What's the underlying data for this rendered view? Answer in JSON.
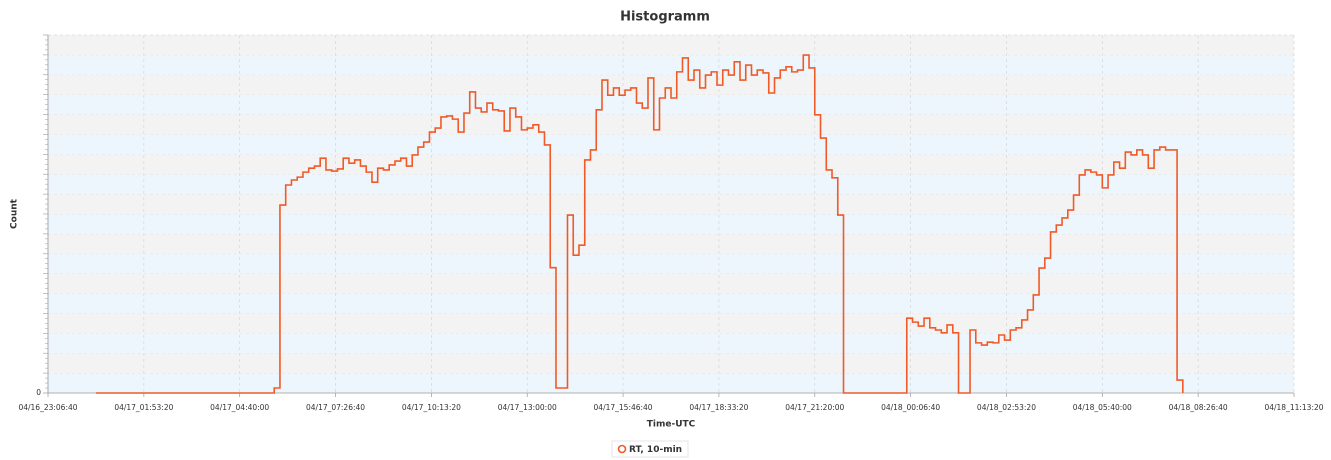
{
  "chart_data": {
    "type": "line",
    "step": true,
    "title": "Histogramm",
    "xlabel": "Time-UTC",
    "ylabel": "Count",
    "xlim": [
      "04/16_23:06:40",
      "04/18_11:13:20"
    ],
    "xticks": [
      "04/16_23:06:40",
      "04/17_01:53:20",
      "04/17_04:40:00",
      "04/17_07:26:40",
      "04/17_10:13:20",
      "04/17_13:00:00",
      "04/17_15:46:40",
      "04/17_18:33:20",
      "04/17_21:20:00",
      "04/18_00:06:40",
      "04/18_02:53:20",
      "04/18_05:40:00",
      "04/18_08:26:40",
      "04/18_11:13:20"
    ],
    "ylim": [
      0,
      100
    ],
    "yticks": [
      0
    ],
    "grid": true,
    "legend": "bottom",
    "series": [
      {
        "name": "RT, 10-min",
        "color": "#f05a28",
        "x": [
          "04/17_00:30:00",
          "04/17_05:40:00",
          "04/17_05:50:00",
          "04/17_06:00:00",
          "04/17_06:10:00",
          "04/17_06:20:00",
          "04/17_06:30:00",
          "04/17_06:40:00",
          "04/17_06:50:00",
          "04/17_07:00:00",
          "04/17_07:10:00",
          "04/17_07:20:00",
          "04/17_07:30:00",
          "04/17_07:40:00",
          "04/17_07:50:00",
          "04/17_08:00:00",
          "04/17_08:10:00",
          "04/17_08:20:00",
          "04/17_08:30:00",
          "04/17_08:40:00",
          "04/17_08:50:00",
          "04/17_09:00:00",
          "04/17_09:10:00",
          "04/17_09:20:00",
          "04/17_09:30:00",
          "04/17_09:40:00",
          "04/17_09:50:00",
          "04/17_10:00:00",
          "04/17_10:10:00",
          "04/17_10:20:00",
          "04/17_10:30:00",
          "04/17_10:40:00",
          "04/17_10:50:00",
          "04/17_11:00:00",
          "04/17_11:10:00",
          "04/17_11:20:00",
          "04/17_11:30:00",
          "04/17_11:40:00",
          "04/17_11:50:00",
          "04/17_12:00:00",
          "04/17_12:10:00",
          "04/17_12:20:00",
          "04/17_12:30:00",
          "04/17_12:40:00",
          "04/17_12:50:00",
          "04/17_13:00:00",
          "04/17_13:10:00",
          "04/17_13:20:00",
          "04/17_13:30:00",
          "04/17_13:40:00",
          "04/17_13:50:00",
          "04/17_14:00:00",
          "04/17_14:10:00",
          "04/17_14:20:00",
          "04/17_14:30:00",
          "04/17_14:40:00",
          "04/17_14:50:00",
          "04/17_15:00:00",
          "04/17_15:10:00",
          "04/17_15:20:00",
          "04/17_15:30:00",
          "04/17_15:40:00",
          "04/17_15:50:00",
          "04/17_16:00:00",
          "04/17_16:10:00",
          "04/17_16:20:00",
          "04/17_16:30:00",
          "04/17_16:40:00",
          "04/17_16:50:00",
          "04/17_17:00:00",
          "04/17_17:10:00",
          "04/17_17:20:00",
          "04/17_17:30:00",
          "04/17_17:40:00",
          "04/17_17:50:00",
          "04/17_18:00:00",
          "04/17_18:10:00",
          "04/17_18:20:00",
          "04/17_18:30:00",
          "04/17_18:40:00",
          "04/17_18:50:00",
          "04/17_19:00:00",
          "04/17_19:10:00",
          "04/17_19:20:00",
          "04/17_19:30:00",
          "04/17_19:40:00",
          "04/17_19:50:00",
          "04/17_20:00:00",
          "04/17_20:10:00",
          "04/17_20:20:00",
          "04/17_20:30:00",
          "04/17_20:40:00",
          "04/17_20:50:00",
          "04/17_21:00:00",
          "04/17_21:10:00",
          "04/17_21:20:00",
          "04/17_21:30:00",
          "04/17_21:40:00",
          "04/17_21:50:00",
          "04/17_22:00:00",
          "04/17_22:10:00",
          "04/18_00:00:00",
          "04/18_00:10:00",
          "04/18_00:20:00",
          "04/18_00:30:00",
          "04/18_00:40:00",
          "04/18_00:50:00",
          "04/18_01:00:00",
          "04/18_01:10:00",
          "04/18_01:20:00",
          "04/18_01:30:00",
          "04/18_01:50:00",
          "04/18_02:00:00",
          "04/18_02:10:00",
          "04/18_02:20:00",
          "04/18_02:30:00",
          "04/18_02:40:00",
          "04/18_02:50:00",
          "04/18_03:00:00",
          "04/18_03:10:00",
          "04/18_03:20:00",
          "04/18_03:30:00",
          "04/18_03:40:00",
          "04/18_03:50:00",
          "04/18_04:00:00",
          "04/18_04:10:00",
          "04/18_04:20:00",
          "04/18_04:30:00",
          "04/18_04:40:00",
          "04/18_04:50:00",
          "04/18_05:00:00",
          "04/18_05:10:00",
          "04/18_05:20:00",
          "04/18_05:30:00",
          "04/18_05:40:00",
          "04/18_05:50:00",
          "04/18_06:00:00",
          "04/18_06:10:00",
          "04/18_06:20:00",
          "04/18_06:30:00",
          "04/18_06:40:00",
          "04/18_06:50:00",
          "04/18_07:00:00",
          "04/18_07:10:00",
          "04/18_07:20:00",
          "04/18_07:30:00",
          "04/18_07:40:00",
          "04/18_07:50:00",
          "04/18_08:00:00"
        ],
        "values": [
          0,
          1.4,
          52.5,
          58.1,
          59.5,
          60.3,
          61.7,
          62.8,
          63.4,
          65.6,
          62.3,
          62.0,
          62.6,
          65.6,
          64.2,
          65.1,
          63.4,
          61.7,
          58.9,
          62.8,
          62.3,
          63.7,
          64.8,
          65.6,
          63.4,
          66.5,
          68.7,
          70.1,
          72.9,
          74.0,
          77.1,
          77.4,
          76.5,
          72.9,
          78.2,
          84.1,
          79.6,
          78.5,
          81.0,
          79.1,
          78.8,
          73.2,
          79.6,
          77.1,
          73.5,
          74.0,
          74.9,
          72.9,
          69.3,
          35.0,
          1.4,
          1.4,
          49.7,
          38.5,
          41.3,
          65.1,
          67.9,
          79.1,
          87.4,
          83.2,
          85.2,
          83.2,
          84.6,
          85.2,
          81.0,
          79.6,
          88.0,
          73.5,
          82.4,
          85.2,
          82.4,
          89.7,
          93.6,
          87.4,
          90.2,
          85.2,
          88.8,
          89.7,
          86.0,
          90.2,
          88.8,
          92.5,
          87.4,
          91.6,
          88.8,
          90.2,
          89.4,
          83.8,
          88.0,
          90.2,
          91.1,
          89.7,
          90.2,
          94.4,
          90.8,
          77.7,
          71.2,
          62.3,
          60.1,
          49.7,
          0,
          20.9,
          19.8,
          18.7,
          20.9,
          18.2,
          17.6,
          16.8,
          19.0,
          16.8,
          0,
          17.6,
          14.0,
          13.4,
          14.2,
          14.0,
          16.2,
          14.8,
          17.6,
          18.2,
          20.4,
          23.2,
          27.4,
          34.9,
          37.7,
          45.0,
          46.9,
          48.9,
          51.1,
          55.3,
          60.9,
          62.3,
          61.7,
          60.9,
          57.3,
          60.9,
          64.5,
          62.8,
          67.3,
          66.5,
          67.9,
          66.5,
          62.8,
          67.9,
          68.7,
          67.9,
          67.9,
          3.6,
          0
        ]
      }
    ]
  }
}
